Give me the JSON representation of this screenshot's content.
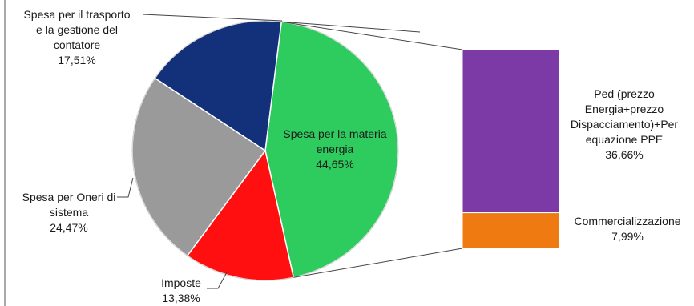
{
  "chart_data": {
    "type": "pie",
    "slices": [
      {
        "label_lines": [
          "Spesa per la materia",
          "energia"
        ],
        "value_label": "44,65%",
        "value": 44.65,
        "color": "#2ecc5f"
      },
      {
        "label_lines": [
          "Imposte"
        ],
        "value_label": "13,38%",
        "value": 13.38,
        "color": "#ff0f0f"
      },
      {
        "label_lines": [
          "Spesa per Oneri di",
          "sistema"
        ],
        "value_label": "24,47%",
        "value": 24.47,
        "color": "#9a9a9a"
      },
      {
        "label_lines": [
          "Spesa per il trasporto",
          "e la gestione del",
          "contatore"
        ],
        "value_label": "17,51%",
        "value": 17.51,
        "color": "#13307a"
      }
    ],
    "breakdown": {
      "of_slice": "Spesa per la materia energia",
      "segments": [
        {
          "label_lines": [
            "Ped (prezzo",
            "Energia+prezzo",
            "Dispacciamento)+Per",
            "equazione PPE"
          ],
          "value_label": "36,66%",
          "value": 36.66,
          "color": "#7b3aa6"
        },
        {
          "label_lines": [
            "Commercializzazione"
          ],
          "value_label": "7,99%",
          "value": 7.99,
          "color": "#f07a12"
        }
      ]
    }
  }
}
